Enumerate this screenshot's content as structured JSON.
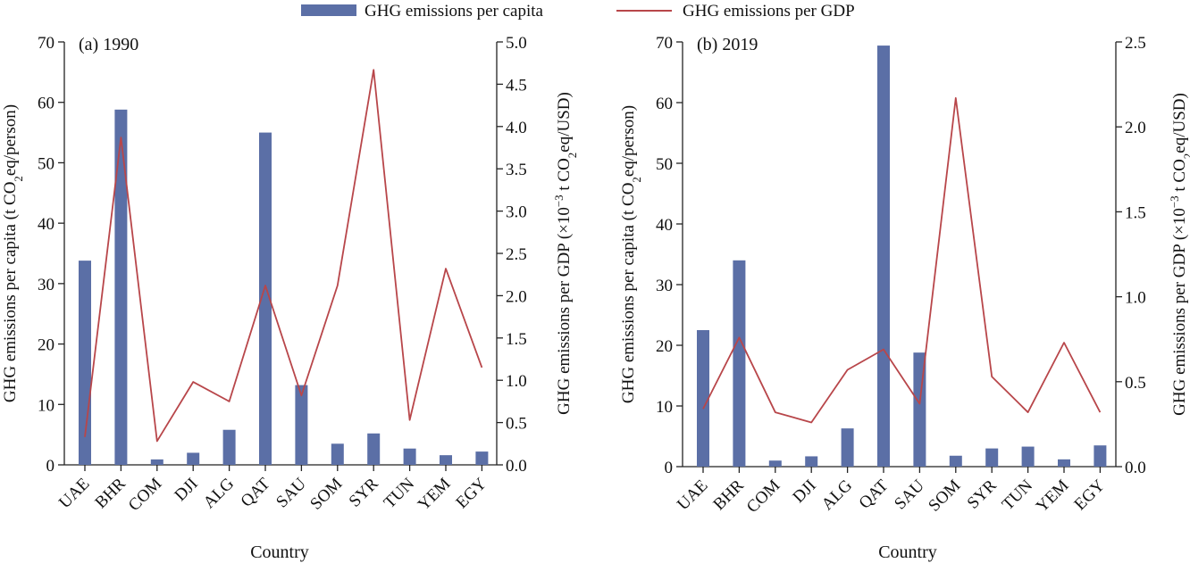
{
  "legend": {
    "bar_label": "GHG emissions per capita",
    "line_label": "GHG emissions per GDP"
  },
  "colors": {
    "bar": "#5b6fa6",
    "line": "#b8464a",
    "axis": "#222222"
  },
  "chart_data": [
    {
      "type": "bar+line",
      "panel_label": "(a) 1990",
      "xlabel": "Country",
      "ylabel_left": "GHG emissions per capita (t CO2eq/person)",
      "ylabel_right": "GHG emissions per GDP (×10⁻³ t CO2eq/USD)",
      "categories": [
        "UAE",
        "BHR",
        "COM",
        "DJI",
        "ALG",
        "QAT",
        "SAU",
        "SOM",
        "SYR",
        "TUN",
        "YEM",
        "EGY"
      ],
      "ylim_left": [
        0,
        70
      ],
      "yticks_left": [
        "0",
        "10",
        "20",
        "30",
        "40",
        "50",
        "60",
        "70"
      ],
      "ylim_right": [
        0,
        5.0
      ],
      "yticks_right": [
        "0.0",
        "0.5",
        "1.0",
        "1.5",
        "2.0",
        "2.5",
        "3.0",
        "3.5",
        "4.0",
        "4.5",
        "5.0"
      ],
      "series": [
        {
          "name": "GHG emissions per capita",
          "kind": "bar",
          "values": [
            33.8,
            58.8,
            0.9,
            2.0,
            5.8,
            55.0,
            13.2,
            3.5,
            5.2,
            2.7,
            1.6,
            2.2
          ]
        },
        {
          "name": "GHG emissions per GDP",
          "kind": "line",
          "values": [
            0.33,
            3.87,
            0.28,
            0.98,
            0.75,
            2.12,
            0.82,
            2.12,
            4.67,
            0.53,
            2.32,
            1.15
          ]
        }
      ],
      "grid": false
    },
    {
      "type": "bar+line",
      "panel_label": "(b) 2019",
      "xlabel": "Country",
      "ylabel_left": "GHG emissions per capita (t CO2eq/person)",
      "ylabel_right": "GHG emissions per GDP (×10⁻³ t CO2eq/USD)",
      "categories": [
        "UAE",
        "BHR",
        "COM",
        "DJI",
        "ALG",
        "QAT",
        "SAU",
        "SOM",
        "SYR",
        "TUN",
        "YEM",
        "EGY"
      ],
      "ylim_left": [
        0,
        70
      ],
      "yticks_left": [
        "0",
        "10",
        "20",
        "30",
        "40",
        "50",
        "60",
        "70"
      ],
      "ylim_right": [
        0,
        2.5
      ],
      "yticks_right": [
        "0.0",
        "0.5",
        "1.0",
        "1.5",
        "2.0",
        "2.5"
      ],
      "series": [
        {
          "name": "GHG emissions per capita",
          "kind": "bar",
          "values": [
            22.5,
            34.0,
            1.0,
            1.7,
            6.3,
            69.4,
            18.8,
            1.8,
            3.0,
            3.3,
            1.2,
            3.5
          ]
        },
        {
          "name": "GHG emissions per GDP",
          "kind": "line",
          "values": [
            0.34,
            0.76,
            0.32,
            0.26,
            0.57,
            0.69,
            0.37,
            2.17,
            0.53,
            0.32,
            0.73,
            0.32
          ]
        }
      ],
      "grid": false
    }
  ]
}
